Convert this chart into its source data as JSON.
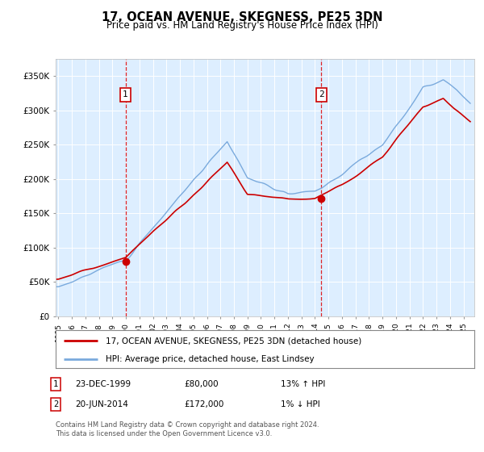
{
  "title": "17, OCEAN AVENUE, SKEGNESS, PE25 3DN",
  "subtitle": "Price paid vs. HM Land Registry's House Price Index (HPI)",
  "legend_line1": "17, OCEAN AVENUE, SKEGNESS, PE25 3DN (detached house)",
  "legend_line2": "HPI: Average price, detached house, East Lindsey",
  "annotation1_date": "23-DEC-1999",
  "annotation1_price": "£80,000",
  "annotation1_hpi": "13% ↑ HPI",
  "annotation2_date": "20-JUN-2014",
  "annotation2_price": "£172,000",
  "annotation2_hpi": "1% ↓ HPI",
  "footnote1": "Contains HM Land Registry data © Crown copyright and database right 2024.",
  "footnote2": "This data is licensed under the Open Government Licence v3.0.",
  "sale1_x": 1999.97,
  "sale1_y": 80000,
  "sale2_x": 2014.47,
  "sale2_y": 172000,
  "red_line_color": "#cc0000",
  "blue_line_color": "#7aaadd",
  "plot_bg": "#ddeeff",
  "yticks": [
    0,
    50000,
    100000,
    150000,
    200000,
    250000,
    300000,
    350000
  ],
  "ylabels": [
    "£0",
    "£50K",
    "£100K",
    "£150K",
    "£200K",
    "£250K",
    "£300K",
    "£350K"
  ],
  "ylim": [
    0,
    375000
  ],
  "xlim_start": 1994.8,
  "xlim_end": 2025.8
}
